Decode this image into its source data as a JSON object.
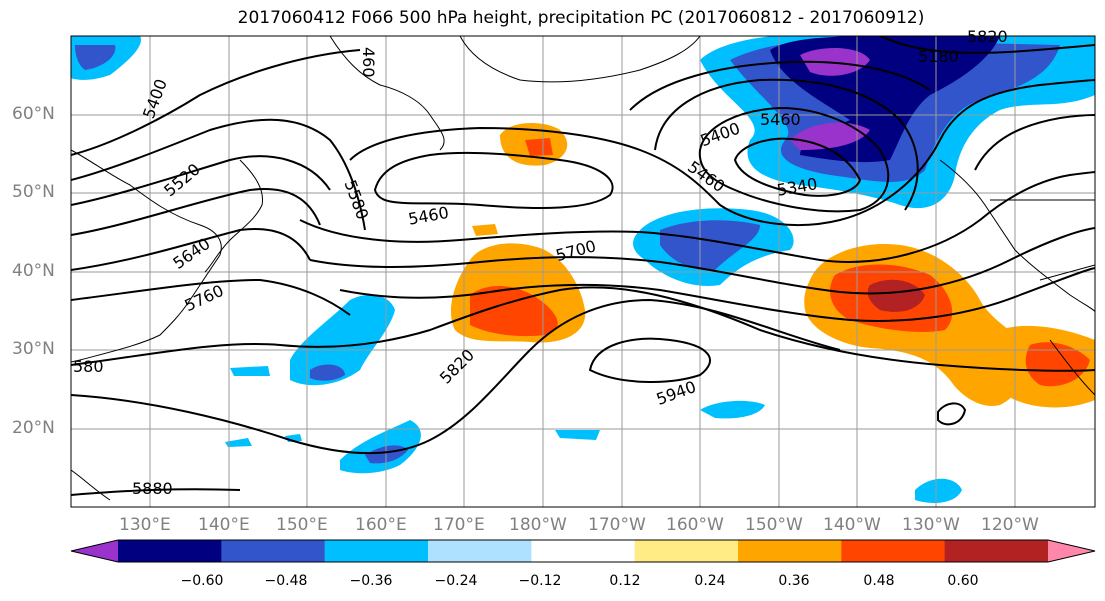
{
  "title": "2017060412 F066 500 hPa height, precipitation PC (2017060812 - 2017060912)",
  "lat_labels": [
    "60°N",
    "50°N",
    "40°N",
    "30°N",
    "20°N"
  ],
  "lon_labels": [
    "130°E",
    "140°E",
    "150°E",
    "160°E",
    "170°E",
    "180°W",
    "170°W",
    "160°W",
    "150°W",
    "140°W",
    "130°W",
    "120°W"
  ],
  "contour_labels": [
    "5400",
    "5520",
    "5640",
    "5760",
    "5880",
    "5460",
    "5580",
    "5460",
    "5700",
    "5820",
    "5940",
    "5400",
    "5460",
    "5340",
    "5180",
    "5820",
    "460",
    "580"
  ],
  "colorbar": {
    "colors": [
      "#9933cc",
      "#000080",
      "#3355cc",
      "#00bfff",
      "#aee0ff",
      "#ffffff",
      "#ffec85",
      "#ffa500",
      "#ff4500",
      "#b22222",
      "#ff88aa"
    ],
    "tick_labels": [
      "−0.60",
      "−0.48",
      "−0.36",
      "−0.24",
      "−0.12",
      "0.12",
      "0.24",
      "0.36",
      "0.48",
      "0.60"
    ]
  }
}
